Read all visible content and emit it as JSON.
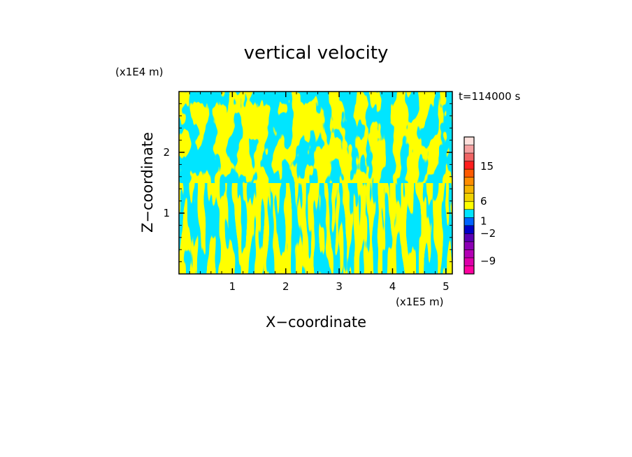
{
  "chart_data": {
    "type": "heatmap",
    "title": "vertical velocity",
    "time_label": "t=114000 s",
    "xlabel": "X−coordinate",
    "ylabel": "Z−coordinate",
    "x_unit": "(x1E5 m)",
    "y_unit": "(x1E4 m)",
    "xlim": [
      0,
      5.12
    ],
    "ylim": [
      0,
      3.0
    ],
    "x_ticks": [
      1,
      2,
      3,
      4,
      5
    ],
    "y_ticks": [
      1,
      2
    ],
    "field_colors": {
      "updraft": "#ffff00",
      "downdraft": "#00e5ff"
    },
    "colorbar": {
      "colors": [
        "#ff00a0",
        "#dd00aa",
        "#b400b4",
        "#8c00b4",
        "#5a00b4",
        "#0000c8",
        "#0064ff",
        "#00e5ff",
        "#ffff00",
        "#f0d200",
        "#f5b400",
        "#ff8c00",
        "#ff5a00",
        "#ff1e1e",
        "#f06464",
        "#f5a0a0",
        "#fde0dc"
      ],
      "tick_labels": [
        "15",
        "6",
        "1",
        "−2",
        "−9"
      ]
    }
  }
}
